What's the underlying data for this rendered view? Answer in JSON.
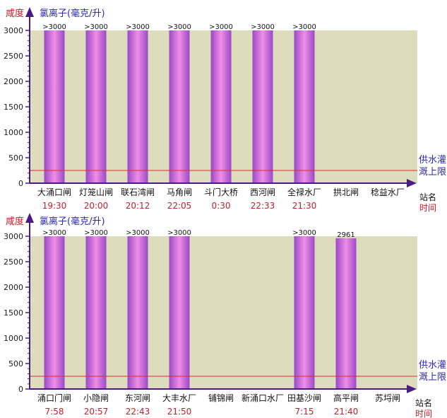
{
  "colors": {
    "plot_background": "#ddddbd",
    "axis": "#4b1b84",
    "threshold_line": "#d62f2f",
    "bar_dark": "#9a49c8",
    "bar_light": "#f08ee6",
    "label_red": "#c0202a",
    "label_blue": "#2b2aa8"
  },
  "chart_data": [
    {
      "type": "bar",
      "y_title_left": "咸度",
      "y_title_right": "氯离子(毫克/升)",
      "x_label_top": "站名",
      "x_label_bottom": "时间",
      "threshold_label_line1": "供水灌",
      "threshold_label_line2": "溉上限",
      "threshold": 250,
      "ylim": [
        0,
        3000
      ],
      "y_ticks": [
        "0",
        "500",
        "1000",
        "1500",
        "2000",
        "2500",
        "3000"
      ],
      "categories": [
        "大涌口闸",
        "灯笼山闸",
        "联石湾闸",
        "马角闸",
        "斗门大桥",
        "西河闸",
        "全禄水厂",
        "拱北闸",
        "稔益水厂"
      ],
      "times": [
        "19:30",
        "20:00",
        "20:12",
        "22:05",
        "0:30",
        "22:33",
        "21:30",
        "",
        ""
      ],
      "values": [
        3000,
        3000,
        3000,
        3000,
        3000,
        3000,
        3000,
        null,
        null
      ],
      "value_labels": [
        ">3000",
        ">3000",
        ">3000",
        ">3000",
        ">3000",
        ">3000",
        ">3000",
        "",
        ""
      ],
      "grid": false
    },
    {
      "type": "bar",
      "y_title_left": "咸度",
      "y_title_right": "氯离子(毫克/升)",
      "x_label_top": "站名",
      "x_label_bottom": "时间",
      "threshold_label_line1": "供水灌",
      "threshold_label_line2": "溉上限",
      "threshold": 250,
      "ylim": [
        0,
        3000
      ],
      "y_ticks": [
        "0",
        "500",
        "1000",
        "1500",
        "2000",
        "2500",
        "3000"
      ],
      "categories": [
        "涌口门闸",
        "小隐闸",
        "东河闸",
        "大丰水厂",
        "铺锦闸",
        "新涌口水厂",
        "田基沙闸",
        "高平闸",
        "苏埒闸"
      ],
      "times": [
        "7:58",
        "20:57",
        "22:43",
        "21:50",
        "",
        "",
        "7:15",
        "21:40",
        ""
      ],
      "values": [
        3000,
        3000,
        3000,
        3000,
        null,
        null,
        3000,
        2961,
        null
      ],
      "value_labels": [
        ">3000",
        ">3000",
        ">3000",
        ">3000",
        "",
        "",
        ">3000",
        "2961",
        ""
      ],
      "grid": false
    }
  ]
}
